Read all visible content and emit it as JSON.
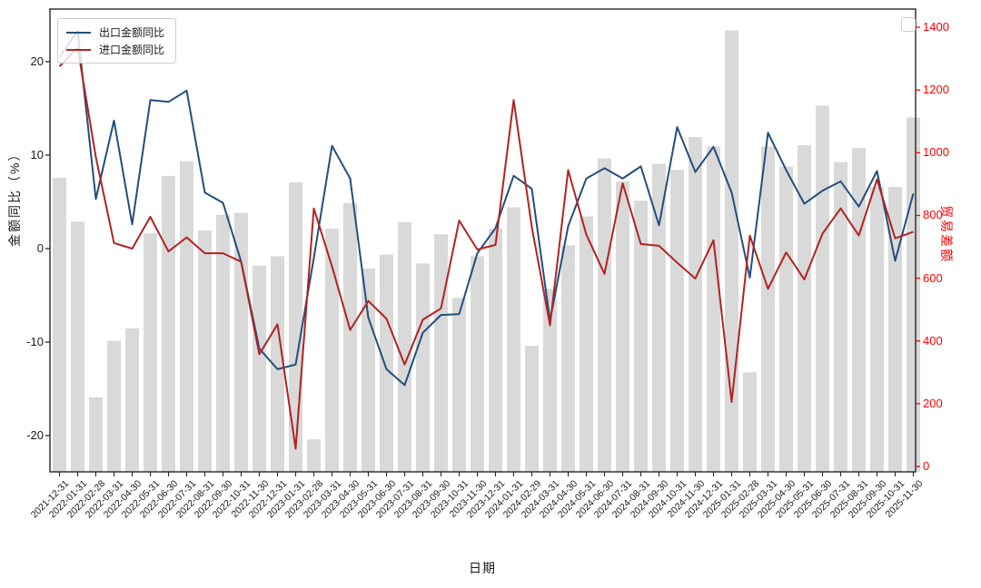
{
  "window": {
    "background": "#ffffff"
  },
  "axes": {
    "xlabel": "日期",
    "ylabel_left": "金额同比（%）",
    "ylabel_right": "贸易差额"
  },
  "legend": {
    "export_label": "出口金额同比",
    "import_label": "进口金额同比"
  },
  "colors": {
    "export_line": "#234e7d",
    "import_line": "#b22222",
    "balance_bar": "#d9d9d9",
    "right_axis": "#ff0000",
    "left_axis_text": "#1a1a1a",
    "spine": "#262626"
  },
  "chart_data": {
    "type": "combo",
    "title": "",
    "xlabel": "日期",
    "ylabel_left": "金额同比（%）",
    "ylabel_right": "贸易差额",
    "grid": false,
    "legend_position": "upper-left",
    "categories": [
      "2021-12-31",
      "2022-01-31",
      "2022-02-28",
      "2022-03-31",
      "2022-04-30",
      "2022-05-31",
      "2022-06-30",
      "2022-07-31",
      "2022-08-31",
      "2022-09-30",
      "2022-10-31",
      "2022-11-30",
      "2022-12-31",
      "2023-01-31",
      "2023-02-28",
      "2023-03-31",
      "2023-04-30",
      "2023-05-31",
      "2023-06-30",
      "2023-07-31",
      "2023-08-31",
      "2023-09-30",
      "2023-10-31",
      "2023-11-30",
      "2023-12-31",
      "2024-01-31",
      "2024-02-29",
      "2024-03-31",
      "2024-04-30",
      "2024-05-31",
      "2024-06-30",
      "2024-07-31",
      "2024-08-31",
      "2024-09-30",
      "2024-10-31",
      "2024-11-30",
      "2024-12-31",
      "2025-01-31",
      "2025-02-28",
      "2025-03-31",
      "2025-04-30",
      "2025-05-31",
      "2025-06-30",
      "2025-07-31",
      "2025-08-31",
      "2025-09-30",
      "2025-10-31",
      "2025-11-30"
    ],
    "left_axis": {
      "ticks": [
        20,
        10,
        0,
        -10,
        -20
      ],
      "lim": [
        -23.9,
        25.6
      ]
    },
    "right_axis": {
      "ticks": [
        0,
        200,
        400,
        600,
        800,
        1000,
        1200,
        1400
      ],
      "lim": [
        0,
        1463
      ]
    },
    "series": [
      {
        "name": "出口金额同比",
        "type": "line",
        "axis": "left",
        "color": "#234e7d",
        "values": [
          20.5,
          23.3,
          5.3,
          13.7,
          2.6,
          15.9,
          15.7,
          16.9,
          6.0,
          4.9,
          -1.4,
          -10.7,
          -12.9,
          -12.4,
          -1.0,
          11.0,
          7.5,
          -7.4,
          -12.9,
          -14.6,
          -9.0,
          -7.1,
          -7.0,
          -0.5,
          2.2,
          7.8,
          6.4,
          -7.7,
          2.4,
          7.5,
          8.6,
          7.5,
          8.8,
          2.5,
          13.0,
          8.2,
          10.9,
          6.0,
          -3.1,
          12.4,
          8.4,
          4.8,
          6.2,
          7.2,
          4.5,
          8.3,
          -1.3,
          5.9
        ]
      },
      {
        "name": "进口金额同比",
        "type": "line",
        "axis": "left",
        "color": "#b22222",
        "values": [
          19.5,
          21.5,
          9.8,
          0.6,
          0.0,
          3.4,
          -0.3,
          1.2,
          -0.5,
          -0.5,
          -1.4,
          -11.3,
          -8.1,
          -21.4,
          4.3,
          -1.9,
          -8.7,
          -5.6,
          -7.5,
          -12.4,
          -7.6,
          -6.4,
          3.0,
          -0.1,
          0.4,
          15.9,
          2.3,
          -8.2,
          8.4,
          1.5,
          -2.7,
          7.0,
          0.5,
          0.3,
          -1.5,
          -3.2,
          0.9,
          -16.4,
          1.4,
          -4.3,
          -0.4,
          -3.3,
          1.6,
          4.3,
          1.4,
          7.4,
          1.1,
          1.8
        ]
      },
      {
        "name": "贸易差额",
        "type": "bar",
        "axis": "right",
        "color": "#d9d9d9",
        "values": [
          920,
          780,
          220,
          400,
          440,
          743,
          926,
          973,
          752,
          802,
          808,
          640,
          670,
          906,
          86,
          758,
          840,
          631,
          675,
          779,
          647,
          740,
          537,
          670,
          758,
          826,
          384,
          566,
          705,
          797,
          982,
          908,
          847,
          965,
          945,
          1050,
          1020,
          1390,
          300,
          1020,
          956,
          1024,
          1150,
          970,
          1015,
          891,
          891,
          1112
        ]
      }
    ]
  }
}
